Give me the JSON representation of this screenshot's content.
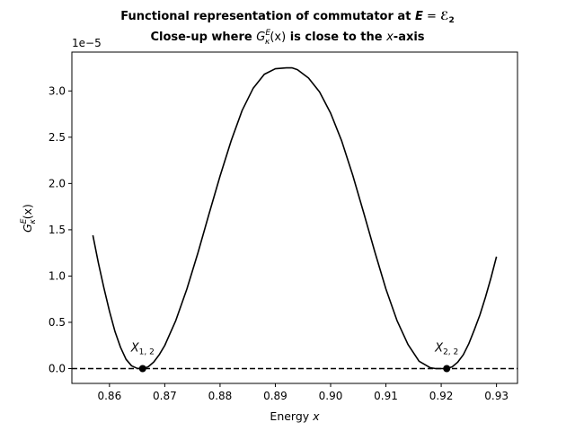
{
  "chart_data": {
    "type": "line",
    "title": "Functional representation of commutator at",
    "title_math_E": "E",
    "title_math_eq": " = ",
    "title_math_calE": "ℰ",
    "title_math_sub": "2",
    "subtitle_pre": "Close-up where ",
    "subtitle_G": "G",
    "subtitle_sup": "E",
    "subtitle_sub": "κ",
    "subtitle_arg": "(x)",
    "subtitle_mid": " is close to the ",
    "subtitle_xvar": "x",
    "subtitle_post": "-axis",
    "xlabel": "Energy",
    "xlabel_var": "x",
    "ylabel_G": "G",
    "ylabel_sup": "E",
    "ylabel_sub": "κ",
    "ylabel_arg": "(x)",
    "y_offset_text": "1e−5",
    "xlim": [
      0.8532,
      0.9338
    ],
    "ylim": [
      -0.16,
      3.42
    ],
    "y_scale_exponent": -5,
    "xticks": [
      {
        "v": 0.86,
        "label": "0.86"
      },
      {
        "v": 0.87,
        "label": "0.87"
      },
      {
        "v": 0.88,
        "label": "0.88"
      },
      {
        "v": 0.89,
        "label": "0.89"
      },
      {
        "v": 0.9,
        "label": "0.90"
      },
      {
        "v": 0.91,
        "label": "0.91"
      },
      {
        "v": 0.92,
        "label": "0.92"
      },
      {
        "v": 0.93,
        "label": "0.93"
      }
    ],
    "yticks": [
      {
        "v": 0.0,
        "label": "0.0"
      },
      {
        "v": 0.5,
        "label": "0.5"
      },
      {
        "v": 1.0,
        "label": "1.0"
      },
      {
        "v": 1.5,
        "label": "1.5"
      },
      {
        "v": 2.0,
        "label": "2.0"
      },
      {
        "v": 2.5,
        "label": "2.5"
      },
      {
        "v": 3.0,
        "label": "3.0"
      }
    ],
    "series": [
      {
        "style": "solid",
        "color": "#000000",
        "x": [
          0.857,
          0.858,
          0.859,
          0.86,
          0.861,
          0.862,
          0.863,
          0.864,
          0.865,
          0.866,
          0.867,
          0.868,
          0.869,
          0.87,
          0.872,
          0.874,
          0.876,
          0.878,
          0.88,
          0.882,
          0.884,
          0.886,
          0.888,
          0.89,
          0.892,
          0.893,
          0.894,
          0.896,
          0.898,
          0.9,
          0.902,
          0.904,
          0.906,
          0.908,
          0.91,
          0.912,
          0.914,
          0.916,
          0.918,
          0.919,
          0.92,
          0.921,
          0.922,
          0.923,
          0.924,
          0.925,
          0.926,
          0.927,
          0.928,
          0.929,
          0.93
        ],
        "y": [
          1.44,
          1.14,
          0.87,
          0.62,
          0.4,
          0.23,
          0.1,
          0.03,
          0.003,
          0.0,
          0.02,
          0.07,
          0.15,
          0.25,
          0.52,
          0.86,
          1.25,
          1.67,
          2.08,
          2.46,
          2.79,
          3.03,
          3.18,
          3.24,
          3.25,
          3.25,
          3.23,
          3.14,
          2.99,
          2.76,
          2.46,
          2.09,
          1.68,
          1.26,
          0.86,
          0.52,
          0.26,
          0.08,
          0.01,
          0.0,
          0.0,
          0.0,
          0.02,
          0.07,
          0.15,
          0.27,
          0.42,
          0.58,
          0.77,
          0.98,
          1.21
        ]
      }
    ],
    "zero_line": {
      "y": 0.0,
      "style": "dashed",
      "color": "#000000"
    },
    "points": [
      {
        "x": 0.866,
        "y": 0.0,
        "label_X": "X",
        "label_sub": "1, 2"
      },
      {
        "x": 0.921,
        "y": 0.0,
        "label_X": "X",
        "label_sub": "2, 2"
      }
    ],
    "grid": false,
    "legend": "none"
  }
}
